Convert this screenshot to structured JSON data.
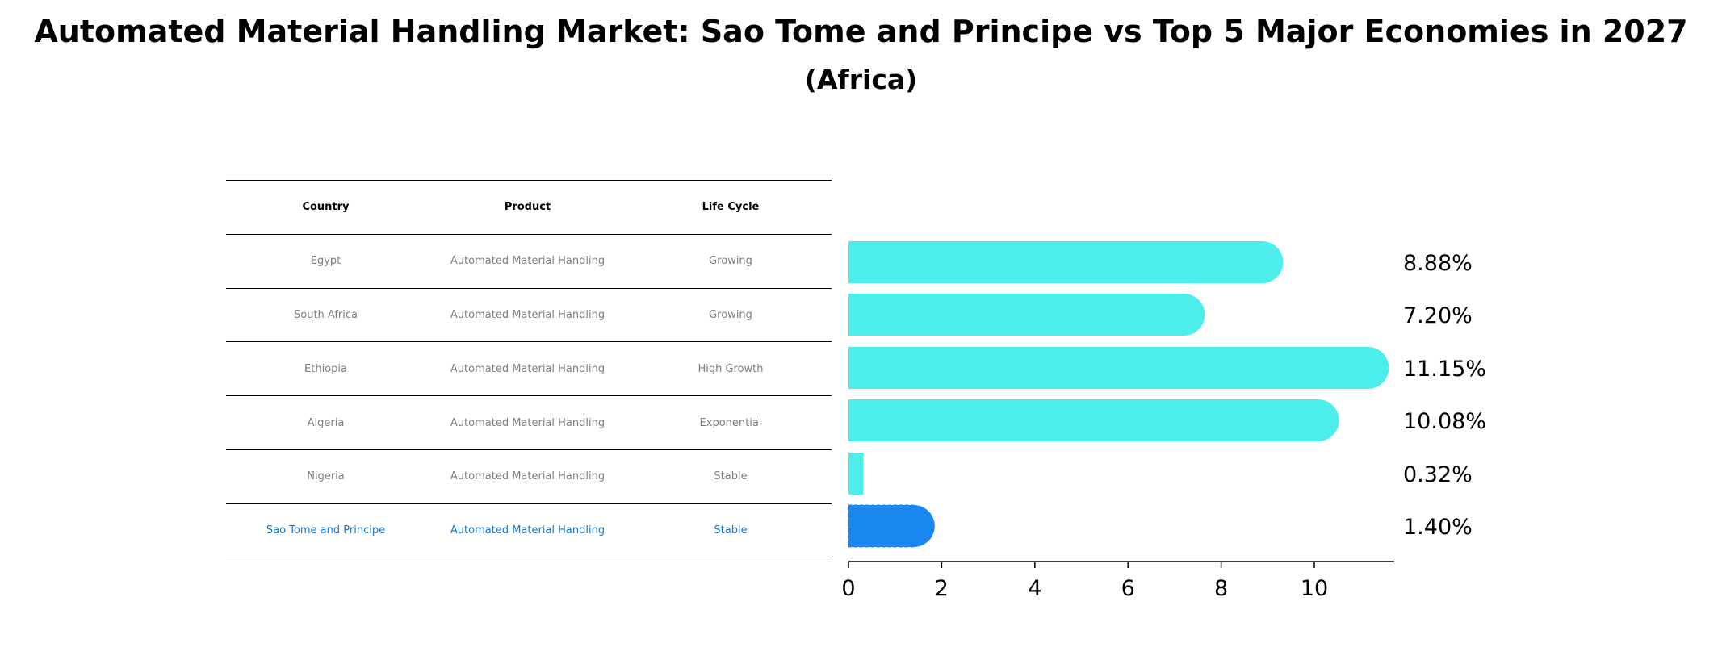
{
  "title": "Automated Material Handling Market: Sao Tome and Principe vs Top 5 Major Economies in 2027",
  "subtitle": "(Africa)",
  "table": {
    "headers": [
      "Country",
      "Product",
      "Life Cycle"
    ],
    "rows": [
      {
        "country": "Egypt",
        "product": "Automated Material Handling",
        "life_cycle": "Growing"
      },
      {
        "country": "South Africa",
        "product": "Automated Material Handling",
        "life_cycle": "Growing"
      },
      {
        "country": "Ethiopia",
        "product": "Automated Material Handling",
        "life_cycle": "High Growth"
      },
      {
        "country": "Algeria",
        "product": "Automated Material Handling",
        "life_cycle": "Exponential"
      },
      {
        "country": "Nigeria",
        "product": "Automated Material Handling",
        "life_cycle": "Stable"
      },
      {
        "country": "Sao Tome and Principe",
        "product": "Automated Material Handling",
        "life_cycle": "Stable"
      }
    ]
  },
  "colors": {
    "bar": "#4beeea",
    "highlight_bar": "#1a86f0",
    "highlight_text": "#1a75c6",
    "row_text": "#7f7f7f"
  },
  "chart_data": {
    "type": "bar",
    "orientation": "horizontal",
    "categories": [
      "Egypt",
      "South Africa",
      "Ethiopia",
      "Algeria",
      "Nigeria",
      "Sao Tome and Principe"
    ],
    "values": [
      8.88,
      7.2,
      11.15,
      10.08,
      0.32,
      1.4
    ],
    "value_labels": [
      "8.88%",
      "7.20%",
      "11.15%",
      "10.08%",
      "0.32%",
      "1.40%"
    ],
    "highlight_index": 5,
    "x_ticks": [
      0,
      2,
      4,
      6,
      8,
      10
    ],
    "x_tick_labels": [
      "0",
      "2",
      "4",
      "6",
      "8",
      "10"
    ],
    "xlim": [
      0,
      11.7
    ],
    "grid": false,
    "legend": "none"
  }
}
